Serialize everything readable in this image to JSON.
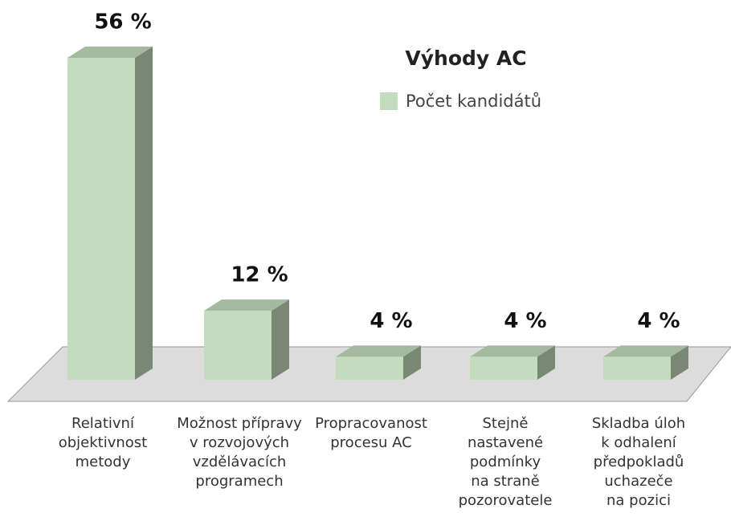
{
  "chart_data": {
    "type": "bar3d",
    "title": "Výhody AC",
    "categories": [
      [
        "Relativní",
        "objektivnost",
        "metody"
      ],
      [
        "Možnost přípravy",
        "v rozvojových",
        "vzdělávacích",
        "programech"
      ],
      [
        "Propracovanost",
        "procesu AC"
      ],
      [
        "Stejně",
        "nastavené",
        "podmínky",
        "na straně",
        "pozorovatele"
      ],
      [
        "Skladba úloh",
        "k odhalení",
        "předpokladů",
        "uchazeče",
        "na pozici"
      ]
    ],
    "series": [
      {
        "name": "Počet kandidátů",
        "color": "#c3dcbd",
        "values": [
          56,
          12,
          4,
          4,
          4
        ],
        "value_labels": [
          "56 %",
          "12 %",
          "4 %",
          "4 %",
          "4 %"
        ]
      }
    ],
    "legend": "top-right"
  }
}
